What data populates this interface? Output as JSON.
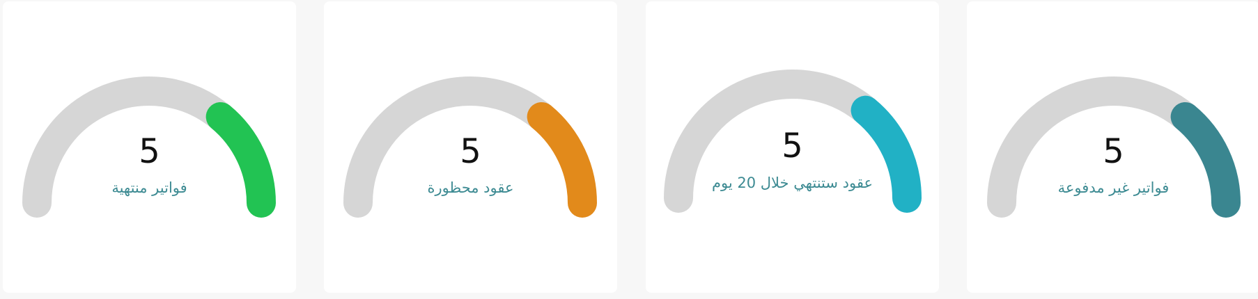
{
  "gauges": [
    {
      "value": "5",
      "label": "فواتير منتهية",
      "fraction": 0.72,
      "color": "#22c353",
      "track_color": "#d6d6d6"
    },
    {
      "value": "5",
      "label": "عقود محظورة",
      "fraction": 0.72,
      "color": "#e28a1b",
      "track_color": "#d6d6d6"
    },
    {
      "value": "5",
      "label": "عقود ستنتهي خلال 20 يوم",
      "fraction": 0.72,
      "color": "#21b1c5",
      "track_color": "#d6d6d6"
    },
    {
      "value": "5",
      "label": "فواتير غير مدفوعة",
      "fraction": 0.72,
      "color": "#3a8690",
      "track_color": "#d6d6d6"
    }
  ]
}
